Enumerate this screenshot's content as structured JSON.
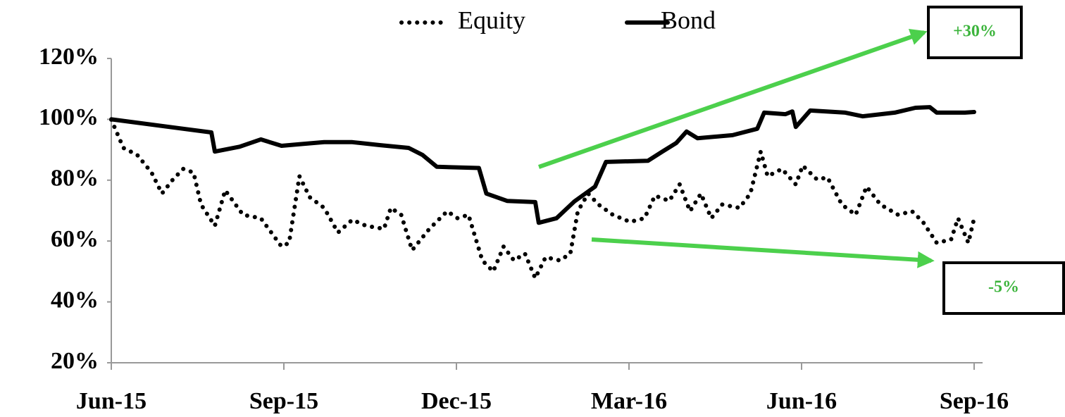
{
  "chart_data": {
    "type": "line",
    "series": [
      {
        "name": "Equity",
        "color": "#000000",
        "dash": true,
        "x": [
          0,
          0.21,
          0.45,
          0.7,
          0.88,
          1.07,
          1.25,
          1.43,
          1.56,
          1.8,
          1.98,
          2.29,
          2.6,
          2.96,
          3.09,
          3.27,
          3.45,
          3.7,
          3.94,
          4.19,
          4.43,
          4.74,
          4.86,
          5.04,
          5.23,
          5.53,
          5.84,
          6.02,
          6.21,
          6.45,
          6.64,
          6.82,
          7.0,
          7.19,
          7.37,
          7.55,
          7.8,
          7.98,
          8.11,
          8.29,
          8.47,
          8.72,
          9.02,
          9.27,
          9.45,
          9.7,
          9.88,
          10.06,
          10.25,
          10.43,
          10.62,
          10.92,
          11.11,
          11.29,
          11.41,
          11.66,
          11.9,
          12.02,
          12.27,
          12.45,
          12.7,
          12.94,
          13.13,
          13.37,
          13.68,
          13.92,
          14.11,
          14.35,
          14.6,
          14.72,
          14.9,
          15
        ],
        "values": [
          99.9,
          90.6,
          88.3,
          82.5,
          75.6,
          80.2,
          83.7,
          82.5,
          72,
          65,
          76.7,
          68.6,
          67.5,
          58.2,
          59.4,
          81.3,
          74.4,
          70.9,
          62.8,
          67,
          65,
          64,
          70.9,
          68.6,
          57,
          64,
          69.8,
          67.5,
          68.6,
          53.6,
          50,
          58.2,
          53.6,
          55.9,
          47.8,
          54.7,
          53.6,
          55.9,
          69.8,
          75.6,
          72,
          68.6,
          66.3,
          67.5,
          74.9,
          73.2,
          78.6,
          69.8,
          75.6,
          67.5,
          72,
          70.9,
          75.6,
          89.4,
          81.3,
          83.7,
          78.6,
          84.8,
          80.2,
          80.9,
          72,
          68.6,
          77.9,
          72,
          68.6,
          69.8,
          66.3,
          59.4,
          60.5,
          67.5,
          59.4,
          67.5
        ]
      },
      {
        "name": "Bond",
        "color": "#000000",
        "dash": false,
        "x": [
          0,
          1.74,
          1.8,
          2.23,
          2.6,
          2.96,
          3.27,
          3.7,
          4.19,
          4.68,
          5.17,
          5.41,
          5.66,
          6.39,
          6.52,
          6.88,
          7.37,
          7.43,
          7.74,
          8.05,
          8.41,
          8.6,
          9.33,
          9.58,
          9.82,
          10.0,
          10.19,
          10.8,
          11.23,
          11.35,
          11.72,
          11.84,
          11.9,
          12.15,
          12.76,
          13.06,
          13.62,
          13.98,
          14.23,
          14.35,
          14.84,
          15
        ],
        "values": [
          100,
          95.7,
          89.4,
          91,
          93.4,
          91.3,
          91.8,
          92.5,
          92.5,
          91.5,
          90.6,
          88.3,
          84.4,
          84,
          75.6,
          73.2,
          72.8,
          66,
          67.5,
          73,
          77.9,
          86,
          86.4,
          89.4,
          92.2,
          96,
          93.8,
          94.8,
          96.9,
          102.2,
          101.7,
          102.6,
          97.5,
          102.9,
          102.2,
          101,
          102.2,
          103.8,
          104,
          102.2,
          102.2,
          102.4
        ]
      }
    ],
    "xlim": [
      0,
      15
    ],
    "xticks": [
      {
        "value": 0,
        "label": "Jun-15"
      },
      {
        "value": 3,
        "label": "Sep-15"
      },
      {
        "value": 6,
        "label": "Dec-15"
      },
      {
        "value": 9,
        "label": "Mar-16"
      },
      {
        "value": 12,
        "label": "Jun-16"
      },
      {
        "value": 15,
        "label": "Sep-16"
      }
    ],
    "ylim": [
      20,
      120
    ],
    "yticks": [
      {
        "value": 20,
        "label": "20%"
      },
      {
        "value": 40,
        "label": "40%"
      },
      {
        "value": 60,
        "label": "60%"
      },
      {
        "value": 80,
        "label": "80%"
      },
      {
        "value": 100,
        "label": "100%"
      },
      {
        "value": 120,
        "label": "120%"
      }
    ],
    "grid": false,
    "legend": "top",
    "annotations": [
      {
        "text": "+30%"
      },
      {
        "text": "-5%"
      }
    ]
  }
}
